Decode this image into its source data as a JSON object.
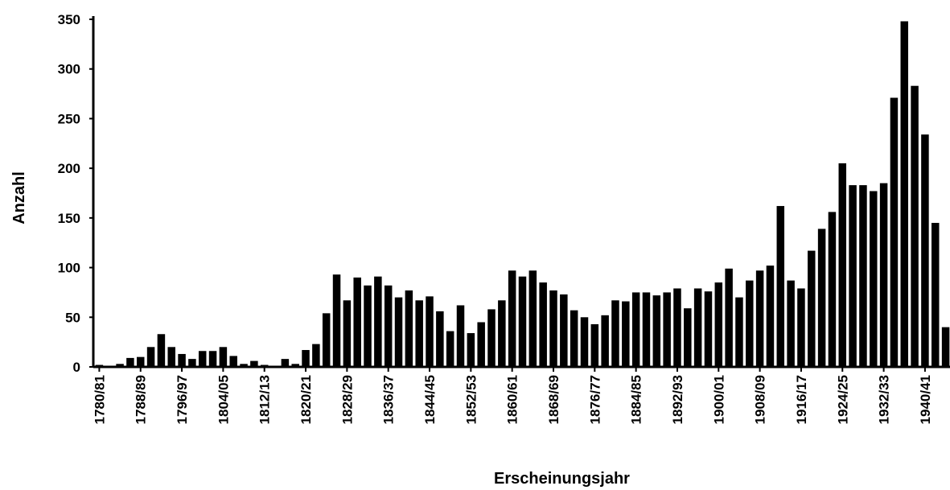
{
  "chart_data": {
    "type": "bar",
    "title": "",
    "xlabel": "Erscheinungsjahr",
    "ylabel": "Anzahl",
    "ylim": [
      0,
      350
    ],
    "yticks": [
      "0",
      "50",
      "100",
      "150",
      "200",
      "250",
      "300",
      "350"
    ],
    "grid": false,
    "legend": "none",
    "bar_color": "#000000",
    "categories": [
      "1780/81",
      "1782/83",
      "1784/85",
      "1786/87",
      "1788/89",
      "1790/91",
      "1792/93",
      "1794/95",
      "1796/97",
      "1798/99",
      "1800/01",
      "1802/03",
      "1804/05",
      "1806/07",
      "1808/09",
      "1810/11",
      "1812/13",
      "1814/15",
      "1816/17",
      "1818/19",
      "1820/21",
      "1822/23",
      "1824/25",
      "1826/27",
      "1828/29",
      "1830/31",
      "1832/33",
      "1834/35",
      "1836/37",
      "1838/39",
      "1840/41",
      "1842/43",
      "1844/45",
      "1846/47",
      "1848/49",
      "1850/51",
      "1852/53",
      "1854/55",
      "1856/57",
      "1858/59",
      "1860/61",
      "1862/63",
      "1864/65",
      "1866/67",
      "1868/69",
      "1870/71",
      "1872/73",
      "1874/75",
      "1876/77",
      "1878/79",
      "1880/81",
      "1882/83",
      "1884/85",
      "1886/87",
      "1888/89",
      "1890/91",
      "1892/93",
      "1894/95",
      "1896/97",
      "1898/99",
      "1900/01",
      "1902/03",
      "1904/05",
      "1906/07",
      "1908/09",
      "1910/11",
      "1912/13",
      "1914/15",
      "1916/17",
      "1918/19",
      "1920/21",
      "1922/23",
      "1924/25",
      "1926/27",
      "1928/29",
      "1930/31",
      "1932/33",
      "1934/35",
      "1936/37",
      "1938/39",
      "1940/41",
      "1942/43",
      "1944/45"
    ],
    "xtick_labels": [
      "1780/81",
      "1788/89",
      "1796/97",
      "1804/05",
      "1812/13",
      "1820/21",
      "1828/29",
      "1836/37",
      "1844/45",
      "1852/53",
      "1860/61",
      "1868/69",
      "1876/77",
      "1884/85",
      "1892/93",
      "1900/01",
      "1908/09",
      "1916/17",
      "1924/25",
      "1932/33",
      "1940/41"
    ],
    "values": [
      2,
      1,
      3,
      9,
      10,
      20,
      33,
      20,
      13,
      8,
      16,
      16,
      20,
      11,
      3,
      6,
      2,
      1,
      8,
      3,
      17,
      23,
      54,
      93,
      67,
      90,
      82,
      91,
      82,
      70,
      77,
      67,
      71,
      56,
      36,
      62,
      34,
      45,
      58,
      67,
      97,
      91,
      97,
      85,
      77,
      73,
      57,
      50,
      43,
      52,
      67,
      66,
      75,
      75,
      72,
      75,
      79,
      59,
      79,
      76,
      85,
      99,
      70,
      87,
      97,
      102,
      162,
      87,
      79,
      117,
      139,
      156,
      205,
      183,
      183,
      177,
      185,
      271,
      348,
      283,
      234,
      145,
      40
    ]
  }
}
